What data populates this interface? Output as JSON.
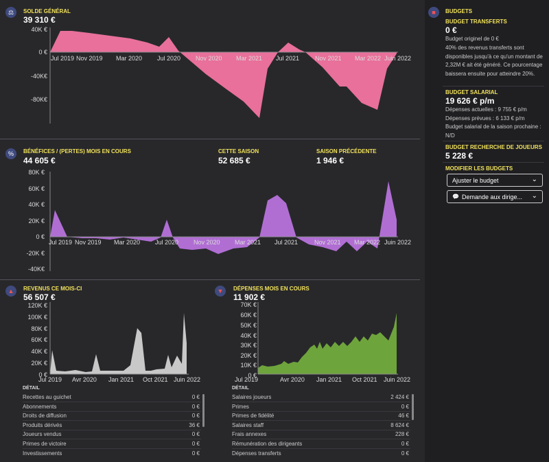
{
  "solde": {
    "title": "SOLDE GÉNÉRAL",
    "value": "39 310 €",
    "y_labels": [
      "40K €",
      "0 €",
      "-40K€",
      "-80K€"
    ],
    "x_labels": [
      "Jul 2019",
      "Nov 2019",
      "Mar 2020",
      "Jul 2020",
      "Nov 2020",
      "Mar 2021",
      "Jul 2021",
      "Nov 2021",
      "Mar 2022",
      "Juin 2022"
    ],
    "color": "#e8709a"
  },
  "benefices": {
    "title": "BÉNÉFICES / (PERTES) MOIS EN COURS",
    "value": "44 605 €",
    "saison_label": "CETTE SAISON",
    "saison_value": "52 685 €",
    "precedente_label": "SAISON PRÉCÉDENTE",
    "precedente_value": "1 946 €",
    "y_labels": [
      "80K €",
      "60K €",
      "40K €",
      "20K €",
      "0 €",
      "-20K €",
      "-40K€"
    ],
    "x_labels": [
      "Jul 2019",
      "Nov 2019",
      "Mar 2020",
      "Jul 2020",
      "Nov 2020",
      "Mar 2021",
      "Jul 2021",
      "Nov 2021",
      "Mar 2022",
      "Juin 2022"
    ],
    "color": "#b06ed3"
  },
  "revenus": {
    "title": "REVENUS CE MOIS-CI",
    "value": "56 507 €",
    "y_labels": [
      "120K €",
      "100K €",
      "80K €",
      "60K €",
      "40K €",
      "20K €",
      "0 €"
    ],
    "x_labels": [
      "Jul 2019",
      "Avr 2020",
      "Jan 2021",
      "Oct 2021",
      "Juin 2022"
    ],
    "color": "#c8c8c8",
    "detail_title": "DÉTAIL",
    "rows": [
      [
        "Recettes au guichet",
        "0 €"
      ],
      [
        "Abonnements",
        "0 €"
      ],
      [
        "Droits de diffusion",
        "0 €"
      ],
      [
        "Produits dérivés",
        "36 €"
      ],
      [
        "Joueurs vendus",
        "0 €"
      ],
      [
        "Primes de victoire",
        "0 €"
      ],
      [
        "Investissements",
        "0 €"
      ]
    ]
  },
  "depenses": {
    "title": "DÉPENSES MOIS EN COURS",
    "value": "11 902 €",
    "y_labels": [
      "70K €",
      "60K €",
      "50K €",
      "40K €",
      "30K €",
      "20K €",
      "10K €",
      "0 €"
    ],
    "x_labels": [
      "Jul 2019",
      "Avr 2020",
      "Jan 2021",
      "Oct 2021",
      "Juin 2022"
    ],
    "color": "#6ea43c",
    "detail_title": "DÉTAIL",
    "rows": [
      [
        "Salaires joueurs",
        "2 424 €"
      ],
      [
        "Primes",
        "0 €"
      ],
      [
        "Primes de fidélité",
        "46 €"
      ],
      [
        "Salaires staff",
        "8 624 €"
      ],
      [
        "Frais annexes",
        "228 €"
      ],
      [
        "Rémunération des dirigeants",
        "0 €"
      ],
      [
        "Dépenses transferts",
        "0 €"
      ]
    ]
  },
  "sidebar": {
    "title": "BUDGETS",
    "transferts_label": "BUDGET TRANSFERTS",
    "transferts_value": "0 €",
    "transferts_desc": "Budget originel de 0 €",
    "transferts_desc2": "40% des revenus transferts sont disponibles jusqu'à ce qu'un montant de 2,32M € ait été généré. Ce pourcentage baissera ensuite pour atteindre 20%.",
    "salarial_label": "BUDGET SALARIAL",
    "salarial_value": "19 626 € p/m",
    "salarial_actuelles": "Dépenses actuelles : 9 755 € p/m",
    "salarial_prevues": "Dépenses prévues : 6 133 € p/m",
    "salarial_prochaine": "Budget salarial de la saison prochaine : N/D",
    "recherche_label": "BUDGET RECHERCHE DE JOUEURS",
    "recherche_value": "5 228 €",
    "modifier_label": "MODIFIER LES BUDGETS",
    "ajuster_label": "Ajuster le budget",
    "demande_label": "Demande aux dirige..."
  }
}
